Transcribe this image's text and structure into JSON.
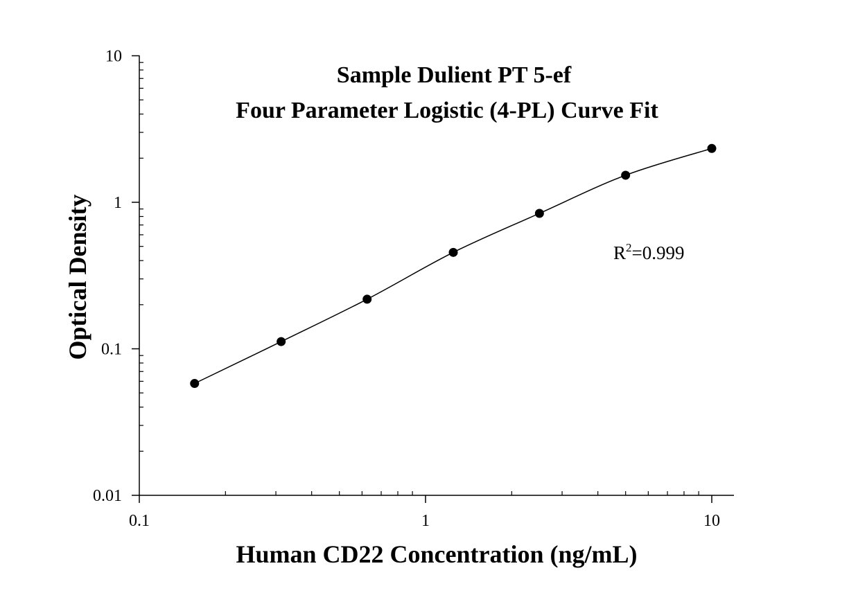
{
  "chart_data": {
    "type": "scatter",
    "title_line1": "Sample Dulient PT 5-ef",
    "title_line2": "Four Parameter Logistic (4-PL) Curve Fit",
    "xlabel": "Human CD22 Concentration (ng/mL)",
    "ylabel": "Optical Density",
    "x_scale": "log",
    "y_scale": "log",
    "xlim": [
      0.1,
      10
    ],
    "ylim": [
      0.01,
      10
    ],
    "x_ticks": [
      {
        "value": 0.1,
        "label": "0.1"
      },
      {
        "value": 1,
        "label": "1"
      },
      {
        "value": 10,
        "label": "10"
      }
    ],
    "y_ticks": [
      {
        "value": 0.01,
        "label": "0.01"
      },
      {
        "value": 0.1,
        "label": "0.1"
      },
      {
        "value": 1,
        "label": "1"
      },
      {
        "value": 10,
        "label": "10"
      }
    ],
    "grid": false,
    "annotation": {
      "base": "R",
      "sup": "2",
      "rest": "=0.999"
    },
    "points": [
      {
        "x": 0.156,
        "y": 0.058
      },
      {
        "x": 0.313,
        "y": 0.112
      },
      {
        "x": 0.625,
        "y": 0.218
      },
      {
        "x": 1.25,
        "y": 0.455
      },
      {
        "x": 2.5,
        "y": 0.84
      },
      {
        "x": 5,
        "y": 1.53
      },
      {
        "x": 10,
        "y": 2.33
      }
    ],
    "curve_fit": "4-PL",
    "marker_color": "#000000",
    "line_color": "#000000"
  }
}
